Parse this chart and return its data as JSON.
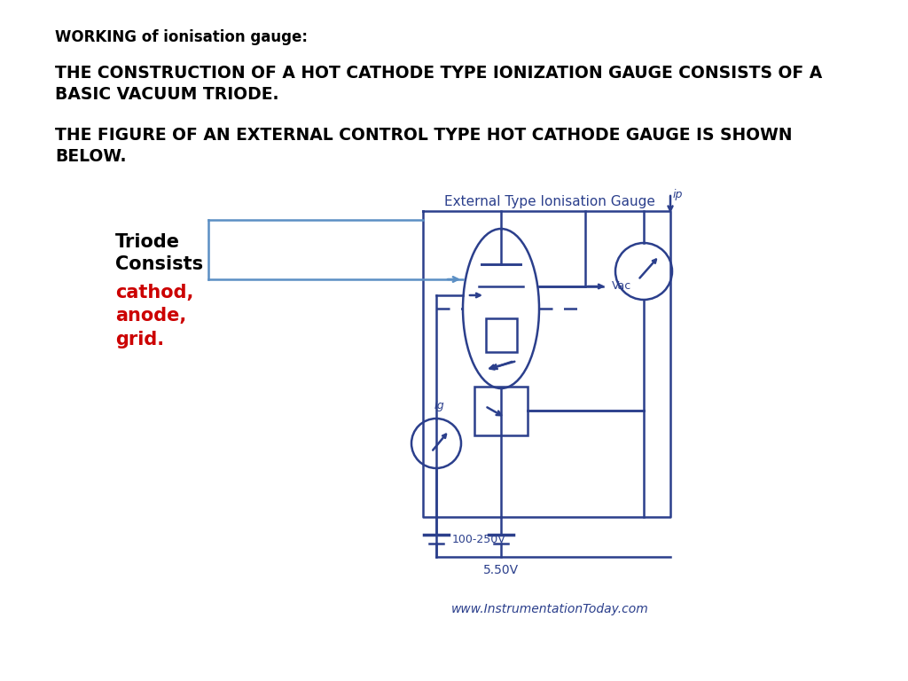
{
  "bg_color": "#ffffff",
  "text_color": "#000000",
  "blue_color": "#2b3f8c",
  "red_color": "#cc0000",
  "light_blue": "#5b8fc4",
  "title_text": "WORKING of ionisation gauge:",
  "para1": "THE CONSTRUCTION OF A HOT CATHODE TYPE IONIZATION GAUGE CONSISTS OF A\nBASIC VACUUM TRIODE.",
  "para2": "THE FIGURE OF AN EXTERNAL CONTROL TYPE HOT CATHODE GAUGE IS SHOWN\nBELOW.",
  "diagram_title": "External Type Ionisation Gauge",
  "label_triode_black": "Triode\nConsists",
  "label_red": "cathod,\nanode,\ngrid.",
  "label_Ig": "Ig",
  "label_Vac": "Vac",
  "label_ip": "ip",
  "label_100V": "100-250V",
  "label_550V": "5.50V",
  "watermark": "www.InstrumentationToday.com"
}
